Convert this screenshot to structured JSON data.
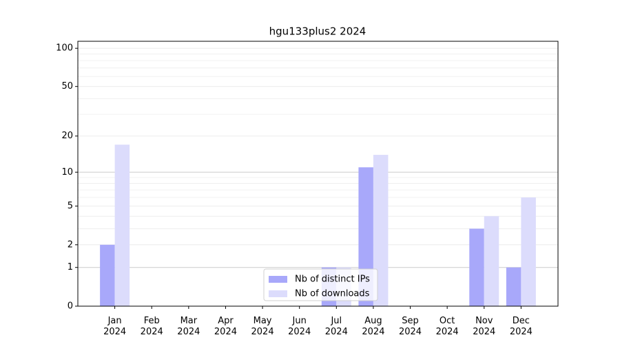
{
  "chart_data": {
    "type": "bar",
    "title": "hgu133plus2 2024",
    "categories": [
      "Jan\n2024",
      "Feb\n2024",
      "Mar\n2024",
      "Apr\n2024",
      "May\n2024",
      "Jun\n2024",
      "Jul\n2024",
      "Aug\n2024",
      "Sep\n2024",
      "Oct\n2024",
      "Nov\n2024",
      "Dec\n2024"
    ],
    "series": [
      {
        "name": "Nb of distinct IPs",
        "color": "#a8a8fa",
        "values": [
          2,
          0,
          0,
          0,
          0,
          0,
          1,
          11,
          0,
          0,
          3,
          1
        ]
      },
      {
        "name": "Nb of downloads",
        "color": "#dcdcfc",
        "values": [
          17,
          0,
          0,
          0,
          0,
          0,
          1,
          14,
          0,
          0,
          4,
          6
        ]
      }
    ],
    "y_scale": "log1p",
    "ylim": [
      0,
      113.5
    ],
    "yticks": [
      0,
      1,
      2,
      5,
      10,
      20,
      50,
      100
    ],
    "minor_yticks": [
      3,
      4,
      6,
      7,
      8,
      9,
      30,
      40,
      60,
      70,
      80,
      90
    ],
    "grid": true,
    "legend": "lower center"
  }
}
